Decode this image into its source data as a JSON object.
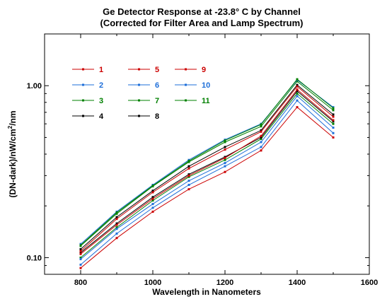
{
  "chart_data": {
    "type": "line",
    "title": "Ge Detector Response at -23.8° C by Channel",
    "subtitle": "(Corrected for Filter Area and Lamp Spectrum)",
    "xlabel": "Wavelength in Nanometers",
    "ylabel_main": "(DN-dark)/nW/cm",
    "ylabel_sup": "2",
    "ylabel_tail": "/nm",
    "x_scale": "linear",
    "y_scale": "log",
    "xlim": [
      700,
      1600
    ],
    "ylim": [
      0.08,
      2.0
    ],
    "x_ticks": [
      800,
      1000,
      1200,
      1400,
      1600
    ],
    "x_tick_labels": [
      "800",
      "1000",
      "1200",
      "1400",
      "1600"
    ],
    "y_ticks": [
      0.1,
      1.0
    ],
    "y_tick_labels": [
      "0.10",
      "1.00"
    ],
    "grid": false,
    "legend_position": "top-left",
    "x": [
      800,
      900,
      1000,
      1100,
      1200,
      1300,
      1400,
      1500
    ],
    "series": [
      {
        "name": "1",
        "color": "#cc0000",
        "values": [
          0.087,
          0.13,
          0.185,
          0.25,
          0.315,
          0.42,
          0.75,
          0.5
        ]
      },
      {
        "name": "2",
        "color": "#1e6fd9",
        "values": [
          0.091,
          0.138,
          0.195,
          0.265,
          0.34,
          0.44,
          0.82,
          0.53
        ]
      },
      {
        "name": "3",
        "color": "#008000",
        "values": [
          0.1,
          0.15,
          0.215,
          0.295,
          0.37,
          0.49,
          0.9,
          0.6
        ]
      },
      {
        "name": "4",
        "color": "#000000",
        "values": [
          0.107,
          0.158,
          0.225,
          0.305,
          0.385,
          0.5,
          0.93,
          0.62
        ]
      },
      {
        "name": "5",
        "color": "#cc0000",
        "values": [
          0.105,
          0.155,
          0.22,
          0.3,
          0.38,
          0.51,
          0.95,
          0.63
        ]
      },
      {
        "name": "6",
        "color": "#1e6fd9",
        "values": [
          0.098,
          0.147,
          0.205,
          0.28,
          0.355,
          0.47,
          0.87,
          0.57
        ]
      },
      {
        "name": "7",
        "color": "#008000",
        "values": [
          0.117,
          0.18,
          0.26,
          0.36,
          0.47,
          0.58,
          1.06,
          0.72
        ]
      },
      {
        "name": "8",
        "color": "#000000",
        "values": [
          0.112,
          0.172,
          0.245,
          0.34,
          0.44,
          0.55,
          1.01,
          0.68
        ]
      },
      {
        "name": "9",
        "color": "#cc0000",
        "values": [
          0.109,
          0.168,
          0.24,
          0.33,
          0.425,
          0.54,
          0.99,
          0.66
        ]
      },
      {
        "name": "10",
        "color": "#1e6fd9",
        "values": [
          0.12,
          0.185,
          0.265,
          0.37,
          0.485,
          0.6,
          1.08,
          0.75
        ]
      },
      {
        "name": "11",
        "color": "#008000",
        "values": [
          0.118,
          0.183,
          0.262,
          0.365,
          0.48,
          0.595,
          1.09,
          0.74
        ]
      }
    ]
  }
}
